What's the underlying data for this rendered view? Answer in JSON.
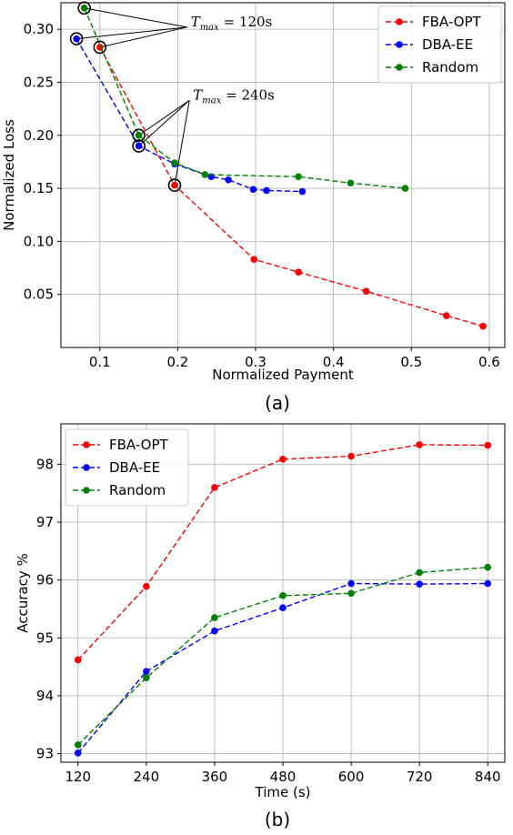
{
  "chart_data": [
    {
      "type": "line",
      "panel_label": "(a)",
      "xlabel": "Normalized Payment",
      "ylabel": "Normalized Loss",
      "xlim": [
        0.05,
        0.62
      ],
      "ylim": [
        0.0,
        0.325
      ],
      "xticks": [
        0.1,
        0.2,
        0.3,
        0.4,
        0.5,
        0.6
      ],
      "xtick_labels": [
        "0.1",
        "0.2",
        "0.3",
        "0.4",
        "0.5",
        "0.6"
      ],
      "yticks": [
        0.05,
        0.1,
        0.15,
        0.2,
        0.25,
        0.3
      ],
      "ytick_labels": [
        "0.05",
        "0.10",
        "0.15",
        "0.20",
        "0.25",
        "0.30"
      ],
      "grid": true,
      "legend_position": "top-right",
      "series": [
        {
          "name": "FBA-OPT",
          "color": "#ff0000",
          "x": [
            0.1,
            0.196,
            0.298,
            0.355,
            0.442,
            0.545,
            0.592
          ],
          "y": [
            0.283,
            0.153,
            0.083,
            0.071,
            0.053,
            0.03,
            0.02
          ]
        },
        {
          "name": "DBA-EE",
          "color": "#0000ff",
          "x": [
            0.07,
            0.15,
            0.196,
            0.243,
            0.265,
            0.297,
            0.314,
            0.36
          ],
          "y": [
            0.291,
            0.19,
            0.173,
            0.161,
            0.158,
            0.149,
            0.148,
            0.147
          ]
        },
        {
          "name": "Random",
          "color": "#008000",
          "x": [
            0.08,
            0.15,
            0.196,
            0.235,
            0.355,
            0.422,
            0.492
          ],
          "y": [
            0.32,
            0.2,
            0.174,
            0.163,
            0.161,
            0.155,
            0.15
          ]
        }
      ],
      "circled_points": [
        {
          "x": 0.08,
          "y": 0.32
        },
        {
          "x": 0.07,
          "y": 0.291
        },
        {
          "x": 0.1,
          "y": 0.283
        },
        {
          "x": 0.15,
          "y": 0.2
        },
        {
          "x": 0.15,
          "y": 0.19
        },
        {
          "x": 0.196,
          "y": 0.153
        }
      ],
      "annotations": [
        {
          "text_main": "T",
          "text_sub": "max",
          "text_rest": " = 120s",
          "anchor_x": 0.212,
          "anchor_y": 0.302,
          "targets": [
            {
              "x": 0.08,
              "y": 0.32
            },
            {
              "x": 0.07,
              "y": 0.291
            },
            {
              "x": 0.1,
              "y": 0.283
            }
          ]
        },
        {
          "text_main": "T",
          "text_sub": "max",
          "text_rest": " = 240s",
          "anchor_x": 0.215,
          "anchor_y": 0.233,
          "targets": [
            {
              "x": 0.15,
              "y": 0.2
            },
            {
              "x": 0.15,
              "y": 0.19
            },
            {
              "x": 0.196,
              "y": 0.153
            }
          ]
        }
      ]
    },
    {
      "type": "line",
      "panel_label": "(b)",
      "xlabel": "Time (s)",
      "ylabel": "Accuracy %",
      "xlim": [
        90,
        870
      ],
      "ylim": [
        92.85,
        98.7
      ],
      "xticks": [
        120,
        240,
        360,
        480,
        600,
        720,
        840
      ],
      "xtick_labels": [
        "120",
        "240",
        "360",
        "480",
        "600",
        "720",
        "840"
      ],
      "yticks": [
        93,
        94,
        95,
        96,
        97,
        98
      ],
      "ytick_labels": [
        "93",
        "94",
        "95",
        "96",
        "97",
        "98"
      ],
      "grid": true,
      "legend_position": "top-left",
      "series": [
        {
          "name": "FBA-OPT",
          "color": "#ff0000",
          "x": [
            120,
            240,
            360,
            480,
            600,
            720,
            840
          ],
          "y": [
            94.62,
            95.89,
            97.6,
            98.09,
            98.14,
            98.34,
            98.33
          ]
        },
        {
          "name": "DBA-EE",
          "color": "#0000ff",
          "x": [
            120,
            240,
            360,
            480,
            600,
            720,
            840
          ],
          "y": [
            93.01,
            94.42,
            95.12,
            95.52,
            95.94,
            95.93,
            95.94
          ]
        },
        {
          "name": "Random",
          "color": "#008000",
          "x": [
            120,
            240,
            360,
            480,
            600,
            720,
            840
          ],
          "y": [
            93.15,
            94.31,
            95.35,
            95.73,
            95.77,
            96.13,
            96.22
          ]
        }
      ]
    }
  ]
}
